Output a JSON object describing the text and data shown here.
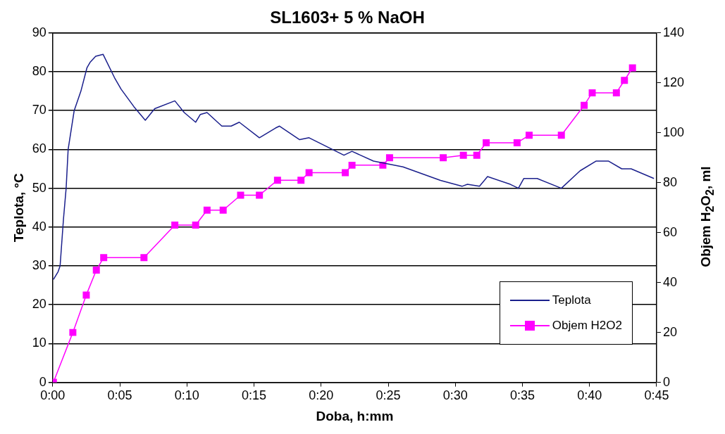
{
  "chart_data": {
    "type": "line",
    "title": "SL1603+ 5 % NaOH",
    "xlabel": "Doba, h:mm",
    "ylabel": "Teplota, °C",
    "y2label": "Objem H$_{2}$O$_{2}$, ml",
    "xlim": [
      0,
      45
    ],
    "xticks": [
      {
        "value": 0,
        "label": "0:00"
      },
      {
        "value": 5,
        "label": "0:05"
      },
      {
        "value": 10,
        "label": "0:10"
      },
      {
        "value": 15,
        "label": "0:15"
      },
      {
        "value": 20,
        "label": "0:20"
      },
      {
        "value": 25,
        "label": "0:25"
      },
      {
        "value": 30,
        "label": "0:30"
      },
      {
        "value": 35,
        "label": "0:35"
      },
      {
        "value": 40,
        "label": "0:40"
      },
      {
        "value": 45,
        "label": "0:45"
      }
    ],
    "ylim": [
      0,
      90
    ],
    "yticks": [
      0,
      10,
      20,
      30,
      40,
      50,
      60,
      70,
      80,
      90
    ],
    "y2lim": [
      0,
      140
    ],
    "y2ticks": [
      0,
      20,
      40,
      60,
      80,
      100,
      120,
      140
    ],
    "grid": "y",
    "legend": "bottom right",
    "series": [
      {
        "name": "Teplota",
        "color": "#1a1f8c",
        "marker": "none",
        "x": [
          0.05,
          0.4,
          0.55,
          0.8,
          1.0,
          1.15,
          1.6,
          2.1,
          2.55,
          2.8,
          3.2,
          3.75,
          4.6,
          5.1,
          6.05,
          6.9,
          7.6,
          9.1,
          9.8,
          10.65,
          11.0,
          11.5,
          12.6,
          13.3,
          13.9,
          15.4,
          16.6,
          16.9,
          18.4,
          19.1,
          21.7,
          22.3,
          23.9,
          26.1,
          28.9,
          30.5,
          30.9,
          31.8,
          32.4,
          34.1,
          34.7,
          35.1,
          36.1,
          37.9,
          39.3,
          40.5,
          41.4,
          42.4,
          43.1,
          44.8
        ],
        "values": [
          26.5,
          28.5,
          30,
          42,
          50,
          60,
          70,
          75,
          81,
          82.5,
          84,
          84.5,
          78.5,
          75.5,
          71,
          67.5,
          70.5,
          72.5,
          69.5,
          67,
          69,
          69.5,
          66,
          66,
          67,
          63,
          65.5,
          66,
          62.5,
          63,
          58.5,
          59.5,
          57,
          55.5,
          52,
          50.5,
          51,
          50.5,
          53,
          51,
          50,
          52.5,
          52.5,
          50,
          54.5,
          57,
          57,
          55,
          55,
          52.5
        ]
      },
      {
        "name": "Objem H2O2",
        "color": "#ff00ff",
        "marker": "square",
        "axis": "y2",
        "x": [
          0.05,
          1.5,
          2.5,
          3.25,
          3.8,
          6.8,
          9.1,
          10.65,
          11.5,
          12.7,
          14.0,
          15.4,
          16.75,
          18.5,
          19.1,
          21.8,
          22.3,
          24.6,
          25.1,
          29.1,
          30.6,
          31.6,
          32.3,
          34.6,
          35.5,
          37.9,
          39.6,
          40.2,
          42.0,
          42.6,
          43.2
        ],
        "values": [
          0,
          20,
          35,
          45,
          50,
          50,
          63,
          63,
          69,
          69,
          75,
          75,
          81,
          81,
          84,
          84,
          87,
          87,
          90,
          90,
          91,
          91,
          96,
          96,
          99,
          99,
          111,
          116,
          116,
          121,
          126
        ]
      }
    ]
  }
}
